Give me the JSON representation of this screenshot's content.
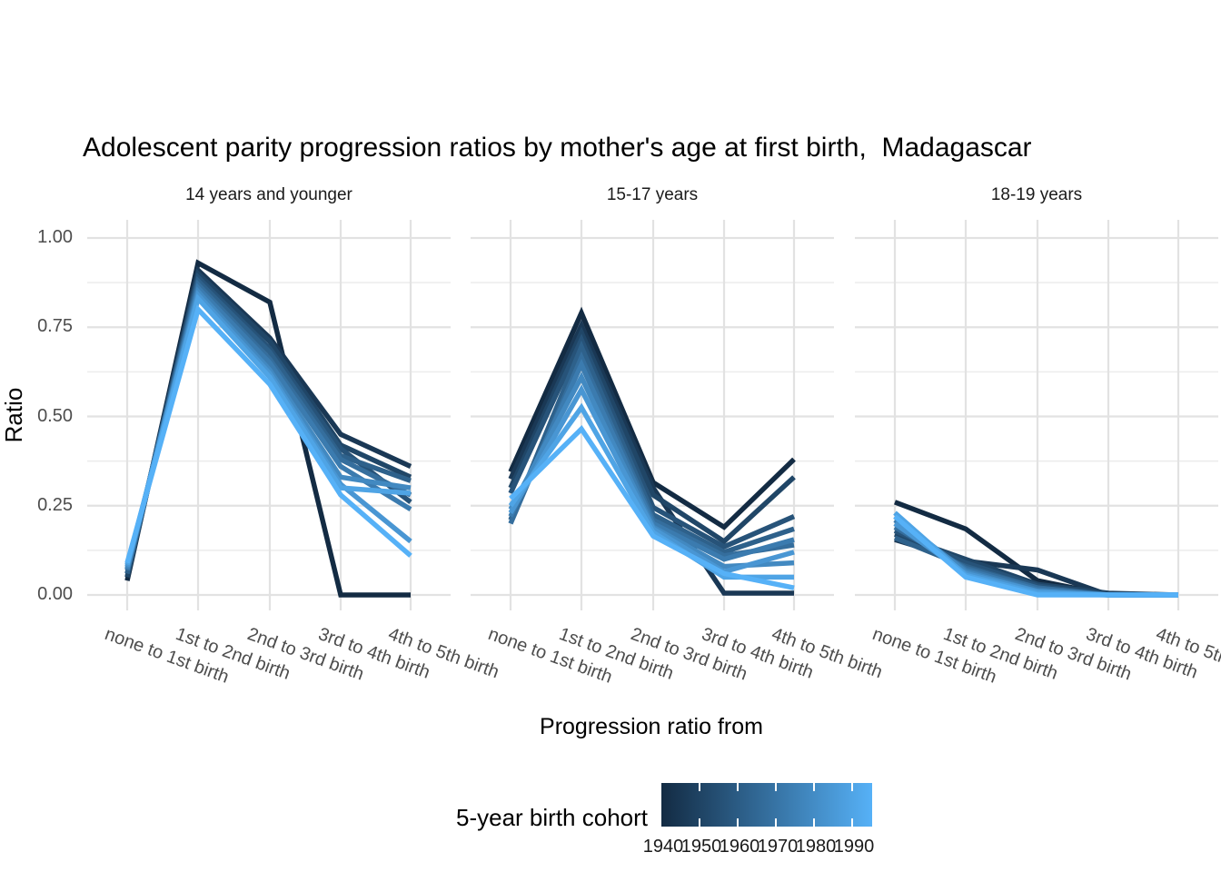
{
  "page_title": "Adolescent parity progression ratios by mother's age at first birth,  Madagascar",
  "chart_data": {
    "type": "line",
    "title": "Adolescent parity progression ratios by mother's age at first birth,  Madagascar",
    "xlabel": "Progression ratio from",
    "ylabel": "Ratio",
    "ylim": [
      0,
      1
    ],
    "grid": true,
    "categories": [
      "none to 1st birth",
      "1st to 2nd birth",
      "2nd to 3rd birth",
      "3rd to 4th birth",
      "4th to 5th birth"
    ],
    "y_major_ticks": [
      {
        "value": 1.0,
        "label": "1.00"
      },
      {
        "value": 0.75,
        "label": "0.75"
      },
      {
        "value": 0.5,
        "label": "0.50"
      },
      {
        "value": 0.25,
        "label": "0.25"
      },
      {
        "value": 0.0,
        "label": "0.00"
      }
    ],
    "y_minor_ticks": [
      0.875,
      0.625,
      0.375,
      0.125
    ],
    "facets": [
      {
        "label": "14 years and younger",
        "series": [
          {
            "cohort": "1940",
            "color": "#132B43",
            "values": [
              0.04,
              0.93,
              0.82,
              0.0,
              0.0
            ]
          },
          {
            "cohort": "1945",
            "color": "#1A3855",
            "values": [
              0.05,
              0.91,
              0.72,
              0.45,
              0.36
            ]
          },
          {
            "cohort": "1950",
            "color": "#204667",
            "values": [
              0.05,
              0.9,
              0.71,
              0.42,
              0.33
            ]
          },
          {
            "cohort": "1955",
            "color": "#275379",
            "values": [
              0.06,
              0.89,
              0.69,
              0.41,
              0.26
            ]
          },
          {
            "cohort": "1960",
            "color": "#2E618B",
            "values": [
              0.06,
              0.88,
              0.68,
              0.39,
              0.32
            ]
          },
          {
            "cohort": "1965",
            "color": "#356E9D",
            "values": [
              0.07,
              0.87,
              0.66,
              0.38,
              0.28
            ]
          },
          {
            "cohort": "1970",
            "color": "#3B7BAF",
            "values": [
              0.07,
              0.86,
              0.65,
              0.36,
              0.24
            ]
          },
          {
            "cohort": "1975",
            "color": "#4289C1",
            "values": [
              0.075,
              0.85,
              0.63,
              0.33,
              0.3
            ]
          },
          {
            "cohort": "1980",
            "color": "#4996D3",
            "values": [
              0.08,
              0.84,
              0.62,
              0.31,
              0.15
            ]
          },
          {
            "cohort": "1985",
            "color": "#4FA4E5",
            "values": [
              0.085,
              0.83,
              0.61,
              0.3,
              0.285
            ]
          },
          {
            "cohort": "1990",
            "color": "#56B1F7",
            "values": [
              0.09,
              0.8,
              0.59,
              0.28,
              0.11
            ]
          }
        ]
      },
      {
        "label": "15-17 years",
        "series": [
          {
            "cohort": "1940",
            "color": "#132B43",
            "values": [
              0.345,
              0.79,
              0.315,
              0.19,
              0.38
            ]
          },
          {
            "cohort": "1945",
            "color": "#1A3855",
            "values": [
              0.325,
              0.755,
              0.3,
              0.005,
              0.005
            ]
          },
          {
            "cohort": "1950",
            "color": "#204667",
            "values": [
              0.3,
              0.735,
              0.28,
              0.15,
              0.33
            ]
          },
          {
            "cohort": "1955",
            "color": "#275379",
            "values": [
              0.285,
              0.715,
              0.245,
              0.135,
              0.22
            ]
          },
          {
            "cohort": "1960",
            "color": "#2E618B",
            "values": [
              0.21,
              0.695,
              0.225,
              0.12,
              0.185
            ]
          },
          {
            "cohort": "1965",
            "color": "#356E9D",
            "values": [
              0.2,
              0.665,
              0.21,
              0.11,
              0.14
            ]
          },
          {
            "cohort": "1970",
            "color": "#3B7BAF",
            "values": [
              0.22,
              0.645,
              0.2,
              0.1,
              0.155
            ]
          },
          {
            "cohort": "1975",
            "color": "#4289C1",
            "values": [
              0.24,
              0.61,
              0.19,
              0.08,
              0.09
            ]
          },
          {
            "cohort": "1980",
            "color": "#4996D3",
            "values": [
              0.23,
              0.575,
              0.185,
              0.065,
              0.12
            ]
          },
          {
            "cohort": "1985",
            "color": "#4FA4E5",
            "values": [
              0.25,
              0.525,
              0.175,
              0.05,
              0.05
            ]
          },
          {
            "cohort": "1990",
            "color": "#56B1F7",
            "values": [
              0.27,
              0.465,
              0.165,
              0.06,
              0.02
            ]
          }
        ]
      },
      {
        "label": "18-19 years",
        "series": [
          {
            "cohort": "1940",
            "color": "#132B43",
            "values": [
              0.26,
              0.185,
              0.04,
              0.0,
              0.0
            ]
          },
          {
            "cohort": "1945",
            "color": "#1A3855",
            "values": [
              0.155,
              0.095,
              0.07,
              0.0,
              0.0
            ]
          },
          {
            "cohort": "1950",
            "color": "#204667",
            "values": [
              0.17,
              0.1,
              0.03,
              0.005,
              0.0
            ]
          },
          {
            "cohort": "1955",
            "color": "#275379",
            "values": [
              0.18,
              0.09,
              0.025,
              0.0,
              0.0
            ]
          },
          {
            "cohort": "1960",
            "color": "#2E618B",
            "values": [
              0.16,
              0.08,
              0.02,
              0.0,
              0.0
            ]
          },
          {
            "cohort": "1965",
            "color": "#356E9D",
            "values": [
              0.19,
              0.075,
              0.02,
              0.0,
              0.0
            ]
          },
          {
            "cohort": "1970",
            "color": "#3B7BAF",
            "values": [
              0.21,
              0.07,
              0.015,
              0.0,
              0.0
            ]
          },
          {
            "cohort": "1975",
            "color": "#4289C1",
            "values": [
              0.22,
              0.065,
              0.01,
              0.0,
              0.0
            ]
          },
          {
            "cohort": "1980",
            "color": "#4996D3",
            "values": [
              0.2,
              0.06,
              0.01,
              0.0,
              0.0
            ]
          },
          {
            "cohort": "1985",
            "color": "#4FA4E5",
            "values": [
              0.23,
              0.055,
              0.005,
              0.0,
              0.0
            ]
          },
          {
            "cohort": "1990",
            "color": "#56B1F7",
            "values": [
              0.22,
              0.05,
              0.0,
              0.0,
              0.0
            ]
          }
        ]
      }
    ],
    "legend": {
      "title": "5-year birth cohort",
      "position": "bottom",
      "gradient_low": "#132B43",
      "gradient_high": "#56B1F7",
      "tick_labels": [
        "1940",
        "1950",
        "1960",
        "1970",
        "1980",
        "1990"
      ]
    },
    "colors": {
      "grid_major": "#e2e2e2",
      "grid_minor": "#ececec",
      "axis_text": "#4d4d4d"
    }
  }
}
